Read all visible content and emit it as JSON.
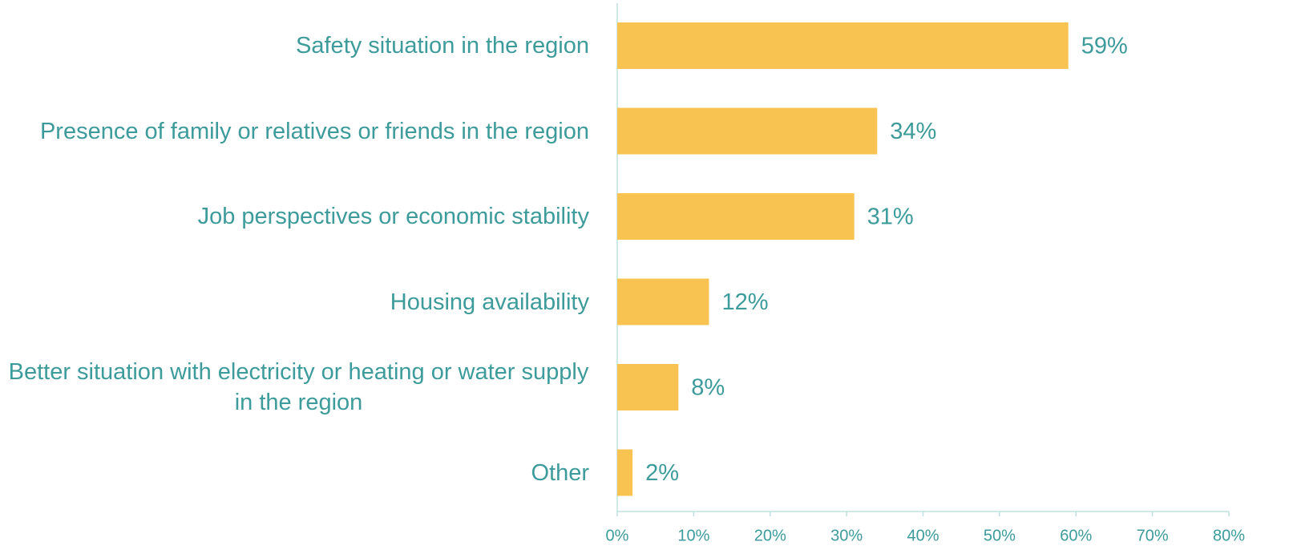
{
  "chart_data": {
    "type": "bar",
    "orientation": "horizontal",
    "categories": [
      "Safety situation in the region",
      "Presence of family or relatives or friends in the region",
      "Job perspectives or economic stability",
      "Housing availability",
      "Better situation with electricity or heating or water supply in the region",
      "Other"
    ],
    "values": [
      59,
      34,
      31,
      12,
      8,
      2
    ],
    "value_labels": [
      "59%",
      "34%",
      "31%",
      "12%",
      "8%",
      "2%"
    ],
    "color": "#f8c350",
    "xlim": [
      0,
      80
    ],
    "xticks": [
      {
        "value": 0,
        "label": "0%"
      },
      {
        "value": 10,
        "label": "10%"
      },
      {
        "value": 20,
        "label": "20%"
      },
      {
        "value": 30,
        "label": "30%"
      },
      {
        "value": 40,
        "label": "40%"
      },
      {
        "value": 50,
        "label": "50%"
      },
      {
        "value": 60,
        "label": "60%"
      },
      {
        "value": 70,
        "label": "70%"
      },
      {
        "value": 80,
        "label": "80%"
      }
    ],
    "grid": false
  }
}
